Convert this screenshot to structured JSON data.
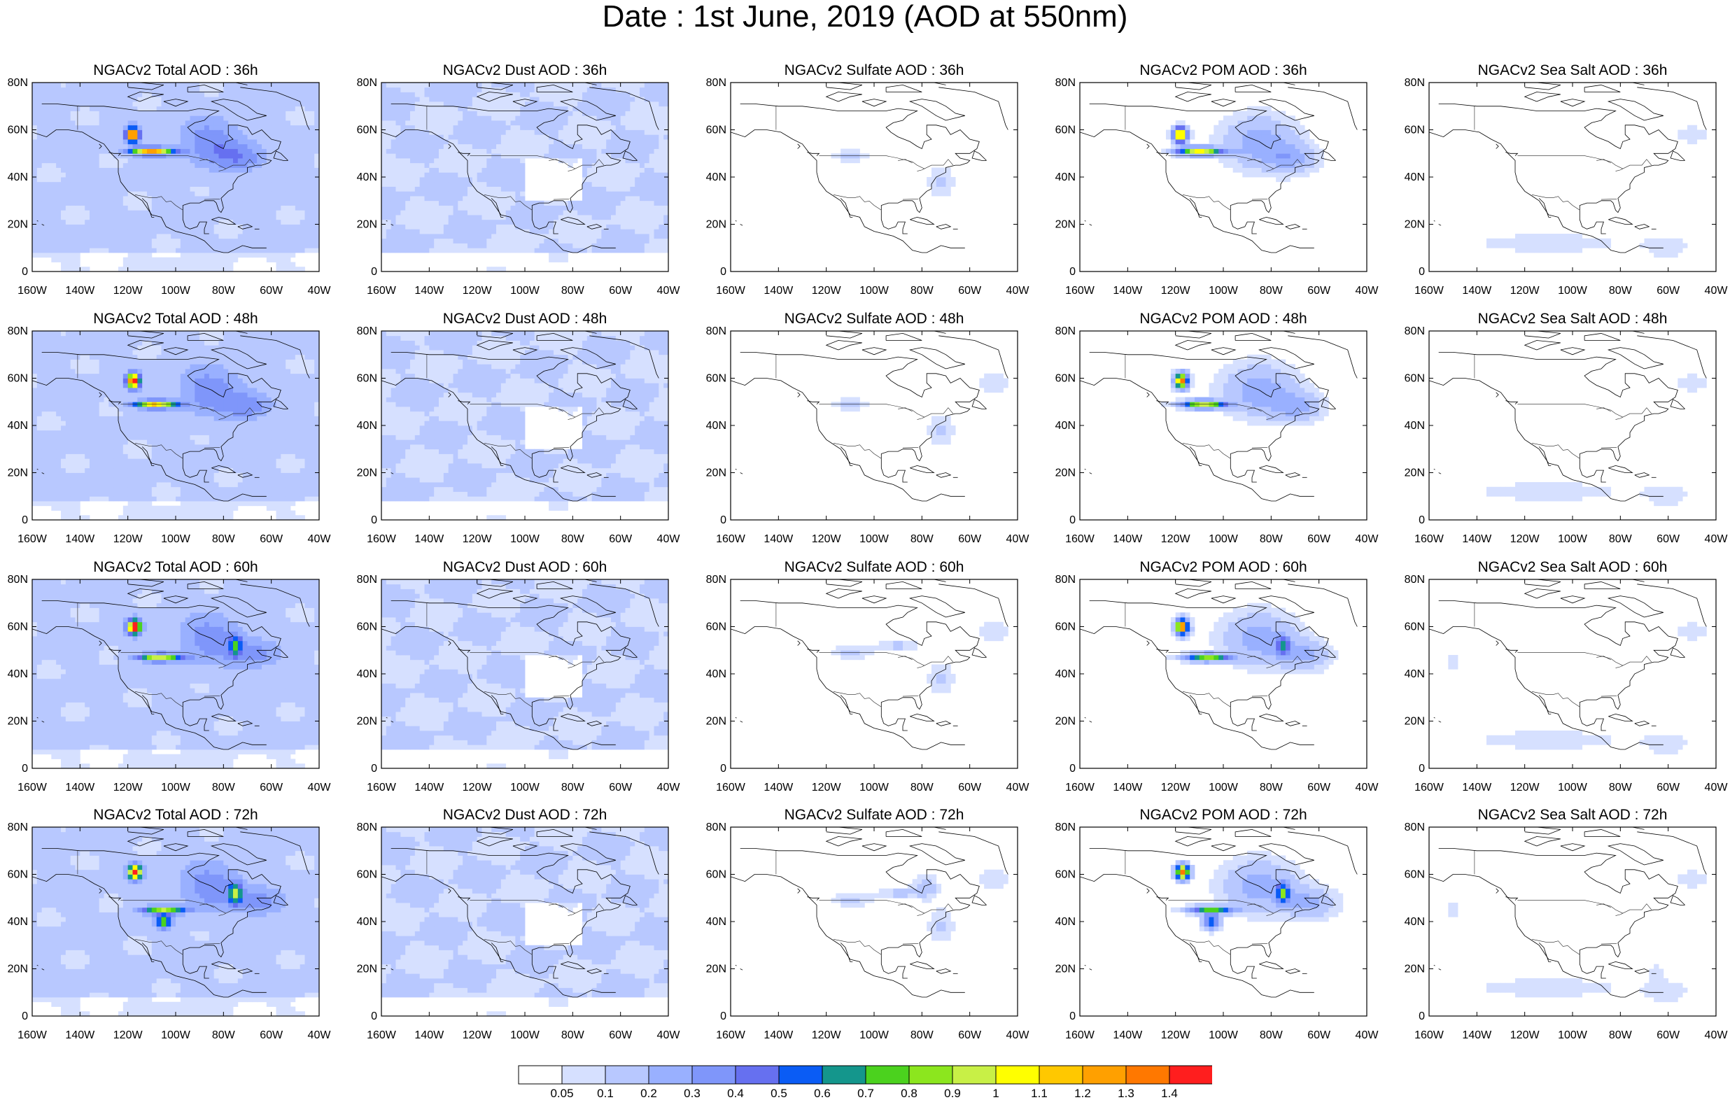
{
  "figure": {
    "title": "Date : 1st June, 2019 (AOD at 550nm)"
  },
  "axes": {
    "lat_ticks": [
      "0",
      "20N",
      "40N",
      "60N",
      "80N"
    ],
    "lon_ticks": [
      "160W",
      "140W",
      "120W",
      "100W",
      "80W",
      "60W",
      "40W"
    ],
    "lon_range": [
      -160,
      -40
    ],
    "lat_range": [
      0,
      80
    ]
  },
  "panels": [
    {
      "title": "NGACv2 Total AOD : 36h",
      "species": "total",
      "hour": 36
    },
    {
      "title": "NGACv2 Dust AOD : 36h",
      "species": "dust",
      "hour": 36
    },
    {
      "title": "NGACv2 Sulfate AOD : 36h",
      "species": "sulfate",
      "hour": 36
    },
    {
      "title": "NGACv2 POM AOD : 36h",
      "species": "pom",
      "hour": 36
    },
    {
      "title": "NGACv2 Sea Salt AOD : 36h",
      "species": "seasalt",
      "hour": 36
    },
    {
      "title": "NGACv2 Total AOD : 48h",
      "species": "total",
      "hour": 48
    },
    {
      "title": "NGACv2 Dust AOD : 48h",
      "species": "dust",
      "hour": 48
    },
    {
      "title": "NGACv2 Sulfate AOD : 48h",
      "species": "sulfate",
      "hour": 48
    },
    {
      "title": "NGACv2 POM AOD : 48h",
      "species": "pom",
      "hour": 48
    },
    {
      "title": "NGACv2 Sea Salt AOD : 48h",
      "species": "seasalt",
      "hour": 48
    },
    {
      "title": "NGACv2 Total AOD : 60h",
      "species": "total",
      "hour": 60
    },
    {
      "title": "NGACv2 Dust AOD : 60h",
      "species": "dust",
      "hour": 60
    },
    {
      "title": "NGACv2 Sulfate AOD : 60h",
      "species": "sulfate",
      "hour": 60
    },
    {
      "title": "NGACv2 POM AOD : 60h",
      "species": "pom",
      "hour": 60
    },
    {
      "title": "NGACv2 Sea Salt AOD : 60h",
      "species": "seasalt",
      "hour": 60
    },
    {
      "title": "NGACv2 Total AOD : 72h",
      "species": "total",
      "hour": 72
    },
    {
      "title": "NGACv2 Dust AOD : 72h",
      "species": "dust",
      "hour": 72
    },
    {
      "title": "NGACv2 Sulfate AOD : 72h",
      "species": "sulfate",
      "hour": 72
    },
    {
      "title": "NGACv2 POM AOD : 72h",
      "species": "pom",
      "hour": 72
    },
    {
      "title": "NGACv2 Sea Salt  AOD : 72h",
      "species": "seasalt",
      "hour": 72
    }
  ],
  "colorbar": {
    "labels": [
      "0.05",
      "0.1",
      "0.2",
      "0.3",
      "0.4",
      "0.5",
      "0.6",
      "0.7",
      "0.8",
      "0.9",
      "1",
      "1.1",
      "1.2",
      "1.3",
      "1.4"
    ],
    "colors": [
      "#ffffff",
      "#d6e0ff",
      "#b8c8ff",
      "#99b0ff",
      "#7f96fa",
      "#6670f0",
      "#0a5cf5",
      "#14968c",
      "#4bd21e",
      "#8ce61e",
      "#c8f046",
      "#ffff00",
      "#ffc800",
      "#ffa000",
      "#ff7800",
      "#ff1e1e"
    ]
  }
}
